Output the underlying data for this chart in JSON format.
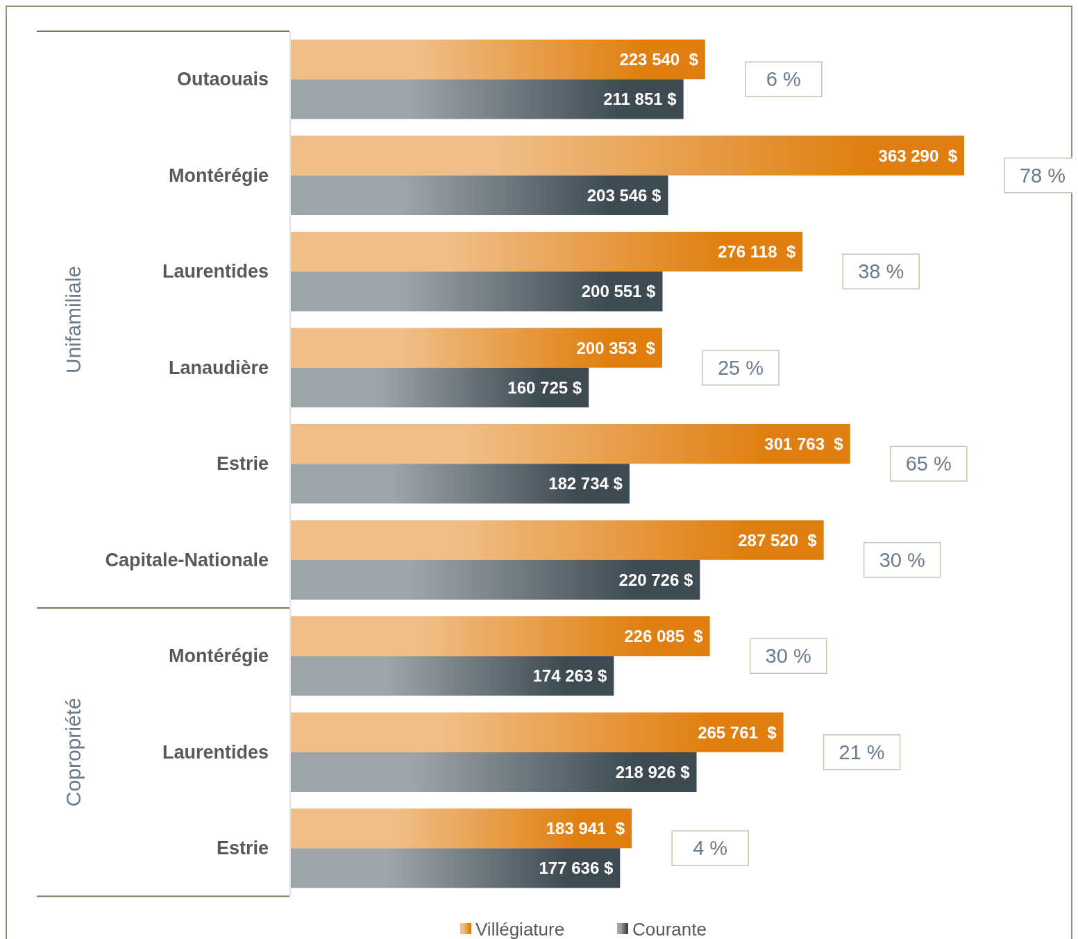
{
  "chart_data": [
    {
      "type": "bar",
      "orientation": "horizontal",
      "ylabel": "Unifamiliale",
      "categories": [
        "Outaouais",
        "Montérégie",
        "Laurentides",
        "Lanaudière",
        "Estrie",
        "Capitale-Nationale"
      ],
      "series": [
        {
          "color": "#e07f10",
          "values": [
            223540,
            363290,
            276118,
            200353,
            301763,
            287520
          ],
          "value_labels": [
            "223 540  $",
            "363 290  $",
            "276 118  $",
            "200 353  $",
            "301 763  $",
            "287 520  $"
          ]
        },
        {
          "color": "#3d4a52",
          "values": [
            211851,
            203546,
            200551,
            160725,
            182734,
            220726
          ],
          "value_labels": [
            "211 851 $",
            "203 546 $",
            "200 551 $",
            "160 725 $",
            "182 734 $",
            "220 726 $"
          ]
        }
      ],
      "annotations": [
        "6 %",
        "78 %",
        "38 %",
        "25 %",
        "65 %",
        "30 %"
      ]
    },
    {
      "type": "bar",
      "orientation": "horizontal",
      "ylabel": "Copropriété",
      "categories": [
        "Montérégie",
        "Laurentides",
        "Estrie"
      ],
      "series": [
        {
          "name": "Villégiature",
          "color": "#e07f10",
          "values": [
            226085,
            265761,
            183941
          ],
          "value_labels": [
            "226 085  $",
            "265 761  $",
            "183 941  $"
          ]
        },
        {
          "name": "Courante",
          "color": "#3d4a52",
          "values": [
            174263,
            218926,
            177636
          ],
          "value_labels": [
            "174 263 $",
            "218 926 $",
            "177 636 $"
          ]
        }
      ],
      "annotations": [
        "30 %",
        "21 %",
        "4 %"
      ],
      "legend": "bottom"
    }
  ]
}
